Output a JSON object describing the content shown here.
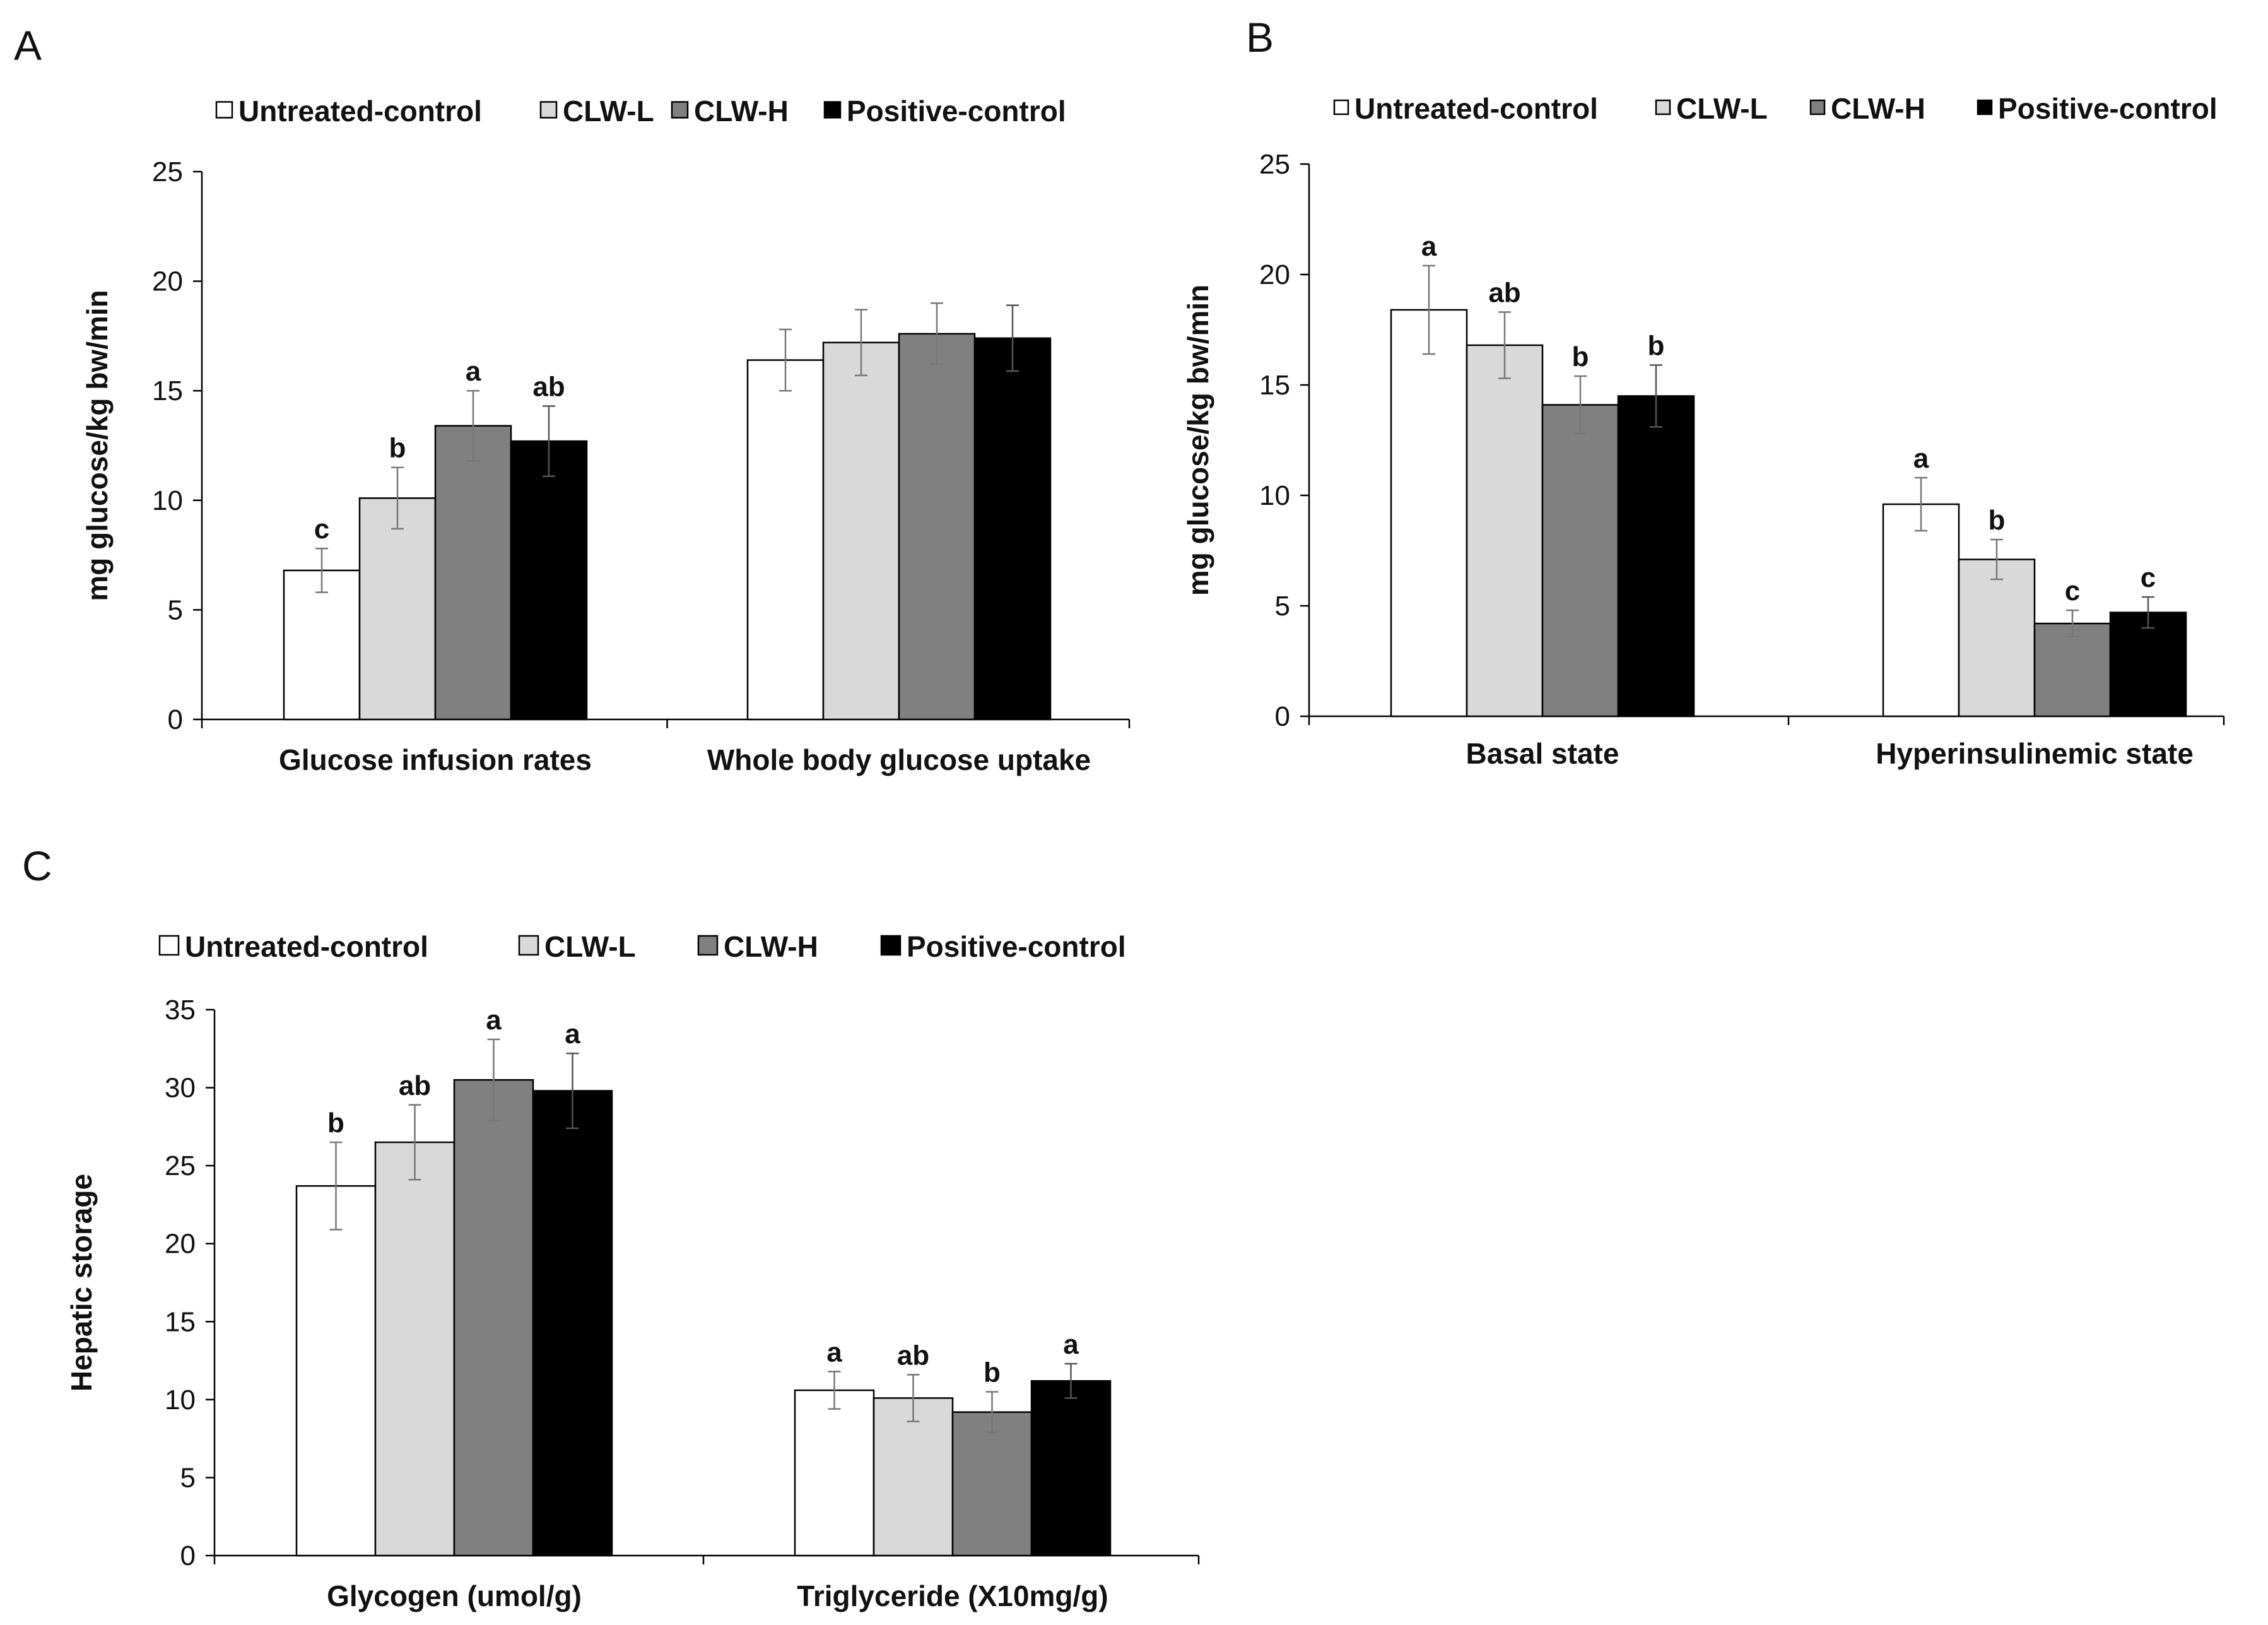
{
  "series": [
    {
      "name": "Untreated-control",
      "color": "#ffffff"
    },
    {
      "name": "CLW-L",
      "color": "#d9d9d9"
    },
    {
      "name": "CLW-H",
      "color": "#808080"
    },
    {
      "name": "Positive-control",
      "color": "#000000"
    }
  ],
  "chart_data": [
    {
      "panel": "A",
      "type": "bar",
      "ylabel": "mg glucose/kg bw/min",
      "ylim": [
        0,
        25
      ],
      "yticks": [
        0,
        5,
        10,
        15,
        20,
        25
      ],
      "legend_position": "top",
      "categories": [
        "Glucose infusion rates",
        "Whole body glucose uptake"
      ],
      "series": [
        {
          "name": "Untreated-control",
          "values": [
            6.8,
            16.4
          ],
          "errors": [
            1.0,
            1.4
          ],
          "labels": [
            "c",
            ""
          ]
        },
        {
          "name": "CLW-L",
          "values": [
            10.1,
            17.2
          ],
          "errors": [
            1.4,
            1.5
          ],
          "labels": [
            "b",
            ""
          ]
        },
        {
          "name": "CLW-H",
          "values": [
            13.4,
            17.6
          ],
          "errors": [
            1.6,
            1.4
          ],
          "labels": [
            "a",
            ""
          ]
        },
        {
          "name": "Positive-control",
          "values": [
            12.7,
            17.4
          ],
          "errors": [
            1.6,
            1.5
          ],
          "labels": [
            "ab",
            ""
          ]
        }
      ]
    },
    {
      "panel": "B",
      "type": "bar",
      "ylabel": "mg glucose/kg bw/min",
      "ylim": [
        0,
        25
      ],
      "yticks": [
        0,
        5,
        10,
        15,
        20,
        25
      ],
      "legend_position": "top",
      "categories": [
        "Basal state",
        "Hyperinsulinemic state"
      ],
      "series": [
        {
          "name": "Untreated-control",
          "values": [
            18.4,
            9.6
          ],
          "errors": [
            2.0,
            1.2
          ],
          "labels": [
            "a",
            "a"
          ]
        },
        {
          "name": "CLW-L",
          "values": [
            16.8,
            7.1
          ],
          "errors": [
            1.5,
            0.9
          ],
          "labels": [
            "ab",
            "b"
          ]
        },
        {
          "name": "CLW-H",
          "values": [
            14.1,
            4.2
          ],
          "errors": [
            1.3,
            0.6
          ],
          "labels": [
            "b",
            "c"
          ]
        },
        {
          "name": "Positive-control",
          "values": [
            14.5,
            4.7
          ],
          "errors": [
            1.4,
            0.7
          ],
          "labels": [
            "b",
            "c"
          ]
        }
      ]
    },
    {
      "panel": "C",
      "type": "bar",
      "ylabel": "Hepatic storage",
      "ylim": [
        0,
        35
      ],
      "yticks": [
        0,
        5,
        10,
        15,
        20,
        25,
        30,
        35
      ],
      "legend_position": "top",
      "categories": [
        "Glycogen (umol/g)",
        "Triglyceride (X10mg/g)"
      ],
      "series": [
        {
          "name": "Untreated-control",
          "values": [
            23.7,
            10.6
          ],
          "errors": [
            2.8,
            1.2
          ],
          "labels": [
            "b",
            "a"
          ]
        },
        {
          "name": "CLW-L",
          "values": [
            26.5,
            10.1
          ],
          "errors": [
            2.4,
            1.5
          ],
          "labels": [
            "ab",
            "ab"
          ]
        },
        {
          "name": "CLW-H",
          "values": [
            30.5,
            9.2
          ],
          "errors": [
            2.6,
            1.3
          ],
          "labels": [
            "a",
            "b"
          ]
        },
        {
          "name": "Positive-control",
          "values": [
            29.8,
            11.2
          ],
          "errors": [
            2.4,
            1.1
          ],
          "labels": [
            "a",
            "a"
          ]
        }
      ]
    }
  ]
}
